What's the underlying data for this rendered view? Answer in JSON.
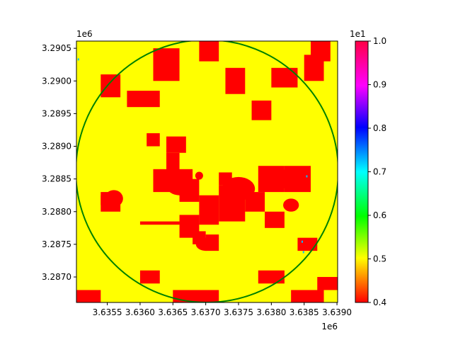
{
  "chart_data": {
    "type": "heatmap",
    "title": "",
    "xlabel": "",
    "ylabel": "",
    "x_offset_label": "1e6",
    "y_offset_label": "1e6",
    "colorbar_offset_label": "1e1",
    "xlim": [
      3.63503,
      3.63901
    ],
    "ylim": [
      3.28661,
      3.29061
    ],
    "x_ticks": [
      {
        "value": 3.6355,
        "label": "3.6355"
      },
      {
        "value": 3.636,
        "label": "3.6360"
      },
      {
        "value": 3.6365,
        "label": "3.6365"
      },
      {
        "value": 3.637,
        "label": "3.6370"
      },
      {
        "value": 3.6375,
        "label": "3.6375"
      },
      {
        "value": 3.638,
        "label": "3.6380"
      },
      {
        "value": 3.6385,
        "label": "3.6385"
      },
      {
        "value": 3.639,
        "label": "3.6390"
      }
    ],
    "y_ticks": [
      {
        "value": 3.287,
        "label": "3.2870"
      },
      {
        "value": 3.2875,
        "label": "3.2875"
      },
      {
        "value": 3.288,
        "label": "3.2880"
      },
      {
        "value": 3.2885,
        "label": "3.2885"
      },
      {
        "value": 3.289,
        "label": "3.2890"
      },
      {
        "value": 3.2895,
        "label": "3.2895"
      },
      {
        "value": 3.29,
        "label": "3.2900"
      },
      {
        "value": 3.2905,
        "label": "3.2905"
      }
    ],
    "colorbar": {
      "range": [
        0.4,
        1.0
      ],
      "colormap": "gist_rainbow_r",
      "ticks": [
        {
          "value": 0.4,
          "label": "0.4"
        },
        {
          "value": 0.5,
          "label": "0.5"
        },
        {
          "value": 0.6,
          "label": "0.6"
        },
        {
          "value": 0.7,
          "label": "0.7"
        },
        {
          "value": 0.8,
          "label": "0.8"
        },
        {
          "value": 0.9,
          "label": "0.9"
        },
        {
          "value": 1.0,
          "label": "1.0"
        }
      ]
    },
    "classes": [
      {
        "value": 0.5,
        "color": "#ffff00",
        "role": "background"
      },
      {
        "value": 0.4,
        "color": "#ff0000",
        "role": "patches"
      },
      {
        "value": 0.7,
        "color": "#00bfff",
        "role": "specks"
      }
    ],
    "circle": {
      "center_x": 3.63702,
      "center_y": 3.28862,
      "radius": 0.002,
      "color": "#008000"
    },
    "patches_rect": [
      [
        3.6358,
        3.6363,
        3.2896,
        3.28985
      ],
      [
        3.6354,
        3.6357,
        3.28975,
        3.2901
      ],
      [
        3.6362,
        3.6366,
        3.29,
        3.2905
      ],
      [
        3.6369,
        3.6372,
        3.2903,
        3.29061
      ],
      [
        3.6373,
        3.6376,
        3.2898,
        3.2902
      ],
      [
        3.6377,
        3.638,
        3.2894,
        3.2897
      ],
      [
        3.638,
        3.6384,
        3.2899,
        3.2902
      ],
      [
        3.6385,
        3.6388,
        3.29,
        3.2904
      ],
      [
        3.6386,
        3.6389,
        3.2903,
        3.29061
      ],
      [
        3.6361,
        3.6363,
        3.289,
        3.2892
      ],
      [
        3.6364,
        3.6367,
        3.2889,
        3.28915
      ],
      [
        3.6364,
        3.6366,
        3.28855,
        3.2889
      ],
      [
        3.6362,
        3.6368,
        3.2883,
        3.28865
      ],
      [
        3.6366,
        3.6369,
        3.28815,
        3.2885
      ],
      [
        3.6369,
        3.6372,
        3.2878,
        3.28825
      ],
      [
        3.6372,
        3.6376,
        3.28785,
        3.2884
      ],
      [
        3.6376,
        3.6379,
        3.288,
        3.2883
      ],
      [
        3.6372,
        3.6374,
        3.2884,
        3.2886
      ],
      [
        3.6378,
        3.6382,
        3.2883,
        3.2887
      ],
      [
        3.6382,
        3.6386,
        3.2883,
        3.2887
      ],
      [
        3.6354,
        3.6357,
        3.288,
        3.28825
      ],
      [
        3.6354,
        3.6356,
        3.2881,
        3.2883
      ],
      [
        3.6366,
        3.6369,
        3.2876,
        3.28795
      ],
      [
        3.6368,
        3.637,
        3.2875,
        3.2877
      ],
      [
        3.637,
        3.6372,
        3.2874,
        3.28765
      ],
      [
        3.636,
        3.6366,
        3.2878,
        3.28785
      ],
      [
        3.6379,
        3.6382,
        3.28775,
        3.288
      ],
      [
        3.6384,
        3.6387,
        3.2874,
        3.2876
      ],
      [
        3.6365,
        3.6372,
        3.28661,
        3.2868
      ],
      [
        3.6383,
        3.6388,
        3.28661,
        3.2868
      ],
      [
        3.6387,
        3.63901,
        3.2868,
        3.287
      ],
      [
        3.63503,
        3.6354,
        3.28661,
        3.2868
      ],
      [
        3.6378,
        3.6382,
        3.2869,
        3.2871
      ],
      [
        3.636,
        3.6363,
        3.2869,
        3.2871
      ]
    ],
    "patches_ellipse": [
      [
        3.6375,
        3.28835,
        0.00025,
        0.00018
      ],
      [
        3.6381,
        3.2885,
        0.00022,
        0.00016
      ],
      [
        3.6366,
        3.2884,
        0.0002,
        0.00015
      ],
      [
        3.637,
        3.2875,
        0.00015,
        0.0001
      ],
      [
        3.6383,
        3.2881,
        0.00012,
        0.0001
      ],
      [
        3.6356,
        3.2882,
        0.00014,
        0.00013
      ],
      [
        3.6369,
        3.28855,
        6e-05,
        6e-05
      ]
    ],
    "specks": [
      [
        3.63506,
        3.29033
      ],
      [
        3.63854,
        3.28854
      ],
      [
        3.63847,
        3.28754
      ],
      [
        3.63849,
        3.28738
      ]
    ]
  }
}
